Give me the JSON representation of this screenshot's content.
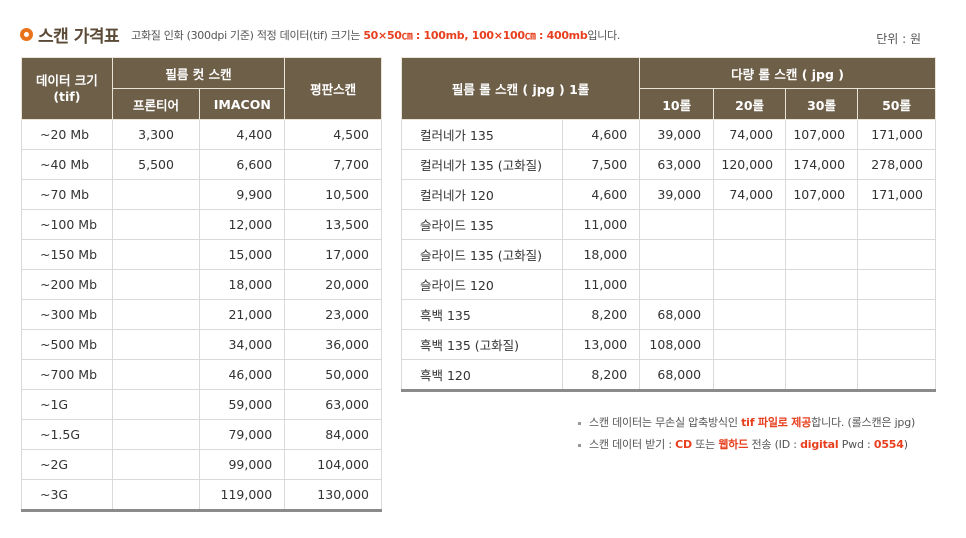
{
  "header": {
    "title": "스캔 가격표",
    "subtitle_pre": "고화질 인화 (300dpi 기준) 적정 데이터(tif) 크기는 ",
    "subtitle_hl1": "50×50㎝ : 100mb,  100×100㎝ : 400mb",
    "subtitle_post": "입니다.",
    "unit": "단위 : 원"
  },
  "film_cut": {
    "col_data_size": "데이터 크기\n(tif)",
    "col_group": "필름 컷 스캔",
    "col_frontier": "프론티어",
    "col_imacon": "IMACON",
    "col_flatbed": "평판스캔",
    "rows": [
      {
        "size": "~20 Mb",
        "frontier": "3,300",
        "imacon": "4,400",
        "flatbed": "4,500"
      },
      {
        "size": "~40 Mb",
        "frontier": "5,500",
        "imacon": "6,600",
        "flatbed": "7,700"
      },
      {
        "size": "~70 Mb",
        "frontier": "",
        "imacon": "9,900",
        "flatbed": "10,500"
      },
      {
        "size": "~100 Mb",
        "frontier": "",
        "imacon": "12,000",
        "flatbed": "13,500"
      },
      {
        "size": "~150 Mb",
        "frontier": "",
        "imacon": "15,000",
        "flatbed": "17,000"
      },
      {
        "size": "~200 Mb",
        "frontier": "",
        "imacon": "18,000",
        "flatbed": "20,000"
      },
      {
        "size": "~300 Mb",
        "frontier": "",
        "imacon": "21,000",
        "flatbed": "23,000"
      },
      {
        "size": "~500 Mb",
        "frontier": "",
        "imacon": "34,000",
        "flatbed": "36,000"
      },
      {
        "size": "~700 Mb",
        "frontier": "",
        "imacon": "46,000",
        "flatbed": "50,000"
      },
      {
        "size": "~1G",
        "frontier": "",
        "imacon": "59,000",
        "flatbed": "63,000"
      },
      {
        "size": "~1.5G",
        "frontier": "",
        "imacon": "79,000",
        "flatbed": "84,000"
      },
      {
        "size": "~2G",
        "frontier": "",
        "imacon": "99,000",
        "flatbed": "104,000"
      },
      {
        "size": "~3G",
        "frontier": "",
        "imacon": "119,000",
        "flatbed": "130,000"
      }
    ]
  },
  "film_roll": {
    "col_roll": "필름 롤 스캔 ( jpg )  1롤",
    "col_group": "다량 롤 스캔 ( jpg )",
    "col_10": "10롤",
    "col_20": "20롤",
    "col_30": "30롤",
    "col_50": "50롤",
    "rows": [
      {
        "name": "컬러네가 135",
        "price": "4,600",
        "r10": "39,000",
        "r20": "74,000",
        "r30": "107,000",
        "r50": "171,000"
      },
      {
        "name": "컬러네가 135 (고화질)",
        "price": "7,500",
        "r10": "63,000",
        "r20": "120,000",
        "r30": "174,000",
        "r50": "278,000"
      },
      {
        "name": "컬러네가 120",
        "price": "4,600",
        "r10": "39,000",
        "r20": "74,000",
        "r30": "107,000",
        "r50": "171,000"
      },
      {
        "name": "슬라이드 135",
        "price": "11,000",
        "r10": "",
        "r20": "",
        "r30": "",
        "r50": ""
      },
      {
        "name": "슬라이드 135 (고화질)",
        "price": "18,000",
        "r10": "",
        "r20": "",
        "r30": "",
        "r50": ""
      },
      {
        "name": "슬라이드 120",
        "price": "11,000",
        "r10": "",
        "r20": "",
        "r30": "",
        "r50": ""
      },
      {
        "name": "흑백 135",
        "price": "8,200",
        "r10": "68,000",
        "r20": "",
        "r30": "",
        "r50": ""
      },
      {
        "name": "흑백 135 (고화질)",
        "price": "13,000",
        "r10": "108,000",
        "r20": "",
        "r30": "",
        "r50": ""
      },
      {
        "name": "흑백 120",
        "price": "8,200",
        "r10": "68,000",
        "r20": "",
        "r30": "",
        "r50": ""
      }
    ]
  },
  "notes": {
    "n1_pre": "스캔 데이터는 무손실 압축방식인 ",
    "n1_hl": "tif 파일로 제공",
    "n1_post": "합니다. (롤스캔은 jpg)",
    "n2_pre": "스캔 데이터 받기 : ",
    "n2_hl1": "CD",
    "n2_mid": " 또는 ",
    "n2_hl2": "웹하드",
    "n2_mid2": " 전송  (ID : ",
    "n2_hl3": "digital",
    "n2_mid3": "   Pwd : ",
    "n2_hl4": "0554",
    "n2_post": ")"
  }
}
